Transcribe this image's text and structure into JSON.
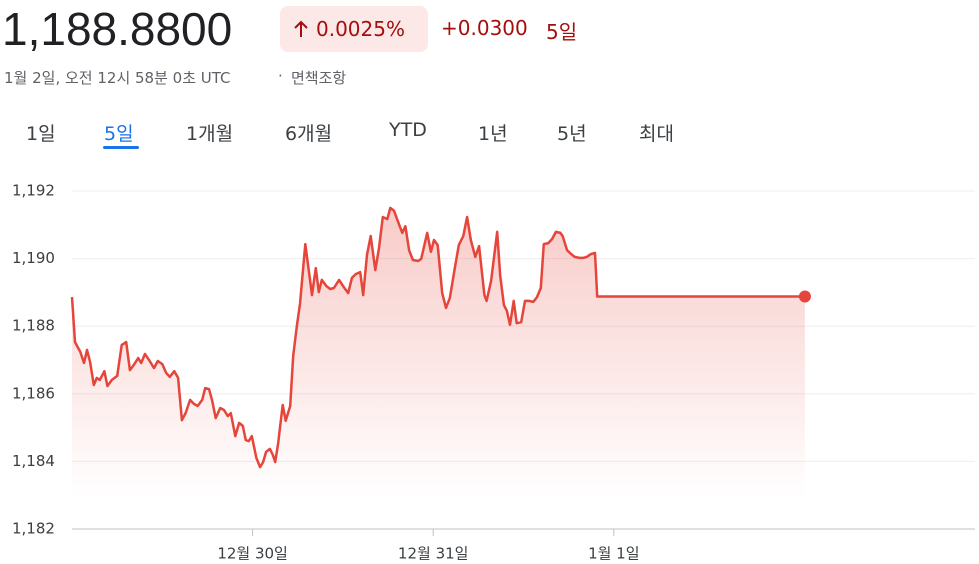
{
  "header": {
    "price": "1,188.8800",
    "change_percent": "0.0025%",
    "change": "+0.0300",
    "period": "5일",
    "timestamp": "1월 2일, 오전 12시 58분 0초 UTC",
    "disclaimer": "면책조항"
  },
  "tabs": [
    "1일",
    "5일",
    "1개월",
    "6개월",
    "YTD",
    "1년",
    "5년",
    "최대"
  ],
  "active_tab": 1,
  "chart_data": {
    "type": "line",
    "color": "#e5453a",
    "grid": true,
    "xlim": [
      0,
      120
    ],
    "ylim": [
      1182,
      1192
    ],
    "xticks": [
      {
        "value": 24,
        "label": "12월 30일"
      },
      {
        "value": 48,
        "label": "12월 31일"
      },
      {
        "value": 72,
        "label": "1월 1일"
      }
    ],
    "yticks": [
      {
        "value": 1182,
        "label": "1,182"
      },
      {
        "value": 1184,
        "label": "1,184"
      },
      {
        "value": 1186,
        "label": "1,186"
      },
      {
        "value": 1188,
        "label": "1,188"
      },
      {
        "value": 1190,
        "label": "1,190"
      },
      {
        "value": 1192,
        "label": "1,192"
      }
    ],
    "x": [
      0.0,
      0.4,
      1.1,
      1.6,
      2.0,
      2.4,
      2.9,
      3.3,
      3.7,
      4.3,
      4.7,
      5.3,
      6.0,
      6.6,
      7.2,
      7.7,
      8.2,
      8.8,
      9.2,
      9.7,
      10.4,
      10.9,
      11.4,
      12.0,
      12.5,
      13.0,
      13.6,
      14.1,
      14.6,
      15.1,
      15.7,
      16.2,
      16.7,
      17.3,
      17.7,
      18.2,
      18.6,
      19.1,
      19.7,
      20.2,
      20.7,
      21.1,
      21.7,
      22.2,
      22.7,
      23.1,
      23.5,
      23.9,
      24.5,
      25.0,
      25.4,
      25.8,
      26.3,
      26.7,
      27.0,
      27.4,
      27.6,
      28.0,
      28.4,
      29.0,
      29.4,
      29.9,
      30.3,
      31.0,
      31.5,
      31.9,
      32.4,
      32.8,
      33.2,
      33.8,
      34.3,
      34.8,
      35.5,
      36.1,
      36.7,
      37.2,
      37.7,
      38.3,
      38.7,
      39.2,
      39.7,
      40.3,
      40.8,
      41.3,
      41.9,
      42.3,
      42.8,
      43.3,
      43.9,
      44.3,
      44.8,
      45.3,
      46.0,
      46.4,
      47.2,
      47.7,
      48.1,
      48.6,
      49.2,
      49.7,
      50.2,
      50.9,
      51.4,
      52.0,
      52.5,
      53.0,
      53.6,
      54.1,
      54.8,
      55.1,
      55.7,
      56.2,
      56.5,
      56.9,
      57.4,
      57.8,
      58.2,
      58.7,
      59.1,
      59.7,
      60.2,
      60.7,
      61.3,
      61.8,
      62.3,
      62.7,
      63.3,
      63.8,
      64.3,
      64.9,
      65.2,
      65.8,
      66.3,
      66.8,
      67.4,
      67.9,
      68.4,
      69.0,
      69.5,
      69.8,
      97.4
    ],
    "values": [
      1188.86,
      1187.53,
      1187.24,
      1186.91,
      1187.3,
      1186.94,
      1186.26,
      1186.47,
      1186.41,
      1186.67,
      1186.23,
      1186.41,
      1186.53,
      1187.44,
      1187.53,
      1186.7,
      1186.85,
      1187.06,
      1186.91,
      1187.18,
      1186.94,
      1186.76,
      1186.97,
      1186.88,
      1186.62,
      1186.5,
      1186.67,
      1186.47,
      1185.22,
      1185.43,
      1185.82,
      1185.7,
      1185.64,
      1185.82,
      1186.17,
      1186.14,
      1185.82,
      1185.28,
      1185.58,
      1185.52,
      1185.34,
      1185.43,
      1184.75,
      1185.14,
      1185.05,
      1184.63,
      1184.6,
      1184.75,
      1184.1,
      1183.83,
      1183.98,
      1184.28,
      1184.37,
      1184.19,
      1183.98,
      1184.54,
      1184.93,
      1185.67,
      1185.2,
      1185.64,
      1187.12,
      1188.04,
      1188.66,
      1190.43,
      1189.6,
      1188.92,
      1189.72,
      1189.01,
      1189.37,
      1189.19,
      1189.1,
      1189.13,
      1189.37,
      1189.16,
      1188.98,
      1189.43,
      1189.54,
      1189.6,
      1188.92,
      1190.11,
      1190.67,
      1189.66,
      1190.31,
      1191.23,
      1191.17,
      1191.5,
      1191.41,
      1191.11,
      1190.76,
      1190.96,
      1190.25,
      1189.96,
      1189.93,
      1189.99,
      1190.76,
      1190.2,
      1190.55,
      1190.4,
      1188.98,
      1188.54,
      1188.83,
      1189.75,
      1190.4,
      1190.67,
      1191.23,
      1190.55,
      1190.05,
      1190.37,
      1188.92,
      1188.75,
      1189.34,
      1190.25,
      1190.79,
      1189.49,
      1188.63,
      1188.45,
      1188.04,
      1188.75,
      1188.09,
      1188.12,
      1188.75,
      1188.75,
      1188.72,
      1188.86,
      1189.13,
      1190.43,
      1190.46,
      1190.58,
      1190.79,
      1190.76,
      1190.67,
      1190.25,
      1190.14,
      1190.05,
      1190.02,
      1190.02,
      1190.05,
      1190.14,
      1190.17,
      1188.88,
      1188.88
    ]
  }
}
